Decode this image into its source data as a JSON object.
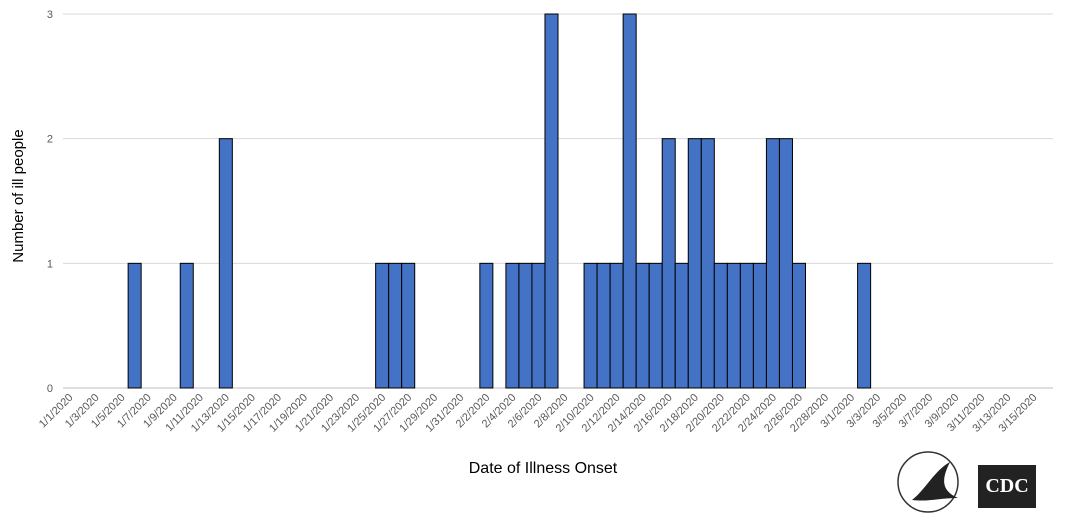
{
  "chart_data": {
    "type": "bar",
    "x_label": "Date of Illness Onset",
    "y_label": "Number of ill people",
    "categories": [
      "1/1/2020",
      null,
      "1/3/2020",
      null,
      "1/5/2020",
      null,
      "1/7/2020",
      null,
      "1/9/2020",
      null,
      "1/11/2020",
      null,
      "1/13/2020",
      null,
      "1/15/2020",
      null,
      "1/17/2020",
      null,
      "1/19/2020",
      null,
      "1/21/2020",
      null,
      "1/23/2020",
      null,
      "1/25/2020",
      null,
      "1/27/2020",
      null,
      "1/29/2020",
      null,
      "1/31/2020",
      null,
      "2/2/2020",
      null,
      "2/4/2020",
      null,
      "2/6/2020",
      null,
      "2/8/2020",
      null,
      "2/10/2020",
      null,
      "2/12/2020",
      null,
      "2/14/2020",
      null,
      "2/16/2020",
      null,
      "2/18/2020",
      null,
      "2/20/2020",
      null,
      "2/22/2020",
      null,
      "2/24/2020",
      null,
      "2/26/2020",
      null,
      "2/28/2020",
      null,
      "3/1/2020",
      null,
      "3/3/2020",
      null,
      "3/5/2020",
      null,
      "3/7/2020",
      null,
      "3/9/2020",
      null,
      "3/11/2020",
      null,
      "3/13/2020",
      null,
      "3/15/2020",
      null
    ],
    "values": [
      0,
      0,
      0,
      0,
      0,
      1,
      0,
      0,
      0,
      1,
      0,
      0,
      2,
      0,
      0,
      0,
      0,
      0,
      0,
      0,
      0,
      0,
      0,
      0,
      1,
      1,
      1,
      0,
      0,
      0,
      0,
      0,
      1,
      0,
      1,
      1,
      1,
      3,
      0,
      0,
      1,
      1,
      1,
      3,
      1,
      1,
      2,
      1,
      2,
      2,
      1,
      1,
      1,
      1,
      2,
      2,
      1,
      0,
      0,
      0,
      0,
      1,
      0,
      0,
      0,
      0,
      0,
      0,
      0,
      0,
      0,
      0,
      0,
      0,
      0,
      0
    ],
    "color": "#4472c4",
    "ylim": [
      0,
      3
    ],
    "yticks": [
      0,
      1,
      2,
      3
    ],
    "grid": true
  },
  "logo": {
    "text": "CDC"
  }
}
